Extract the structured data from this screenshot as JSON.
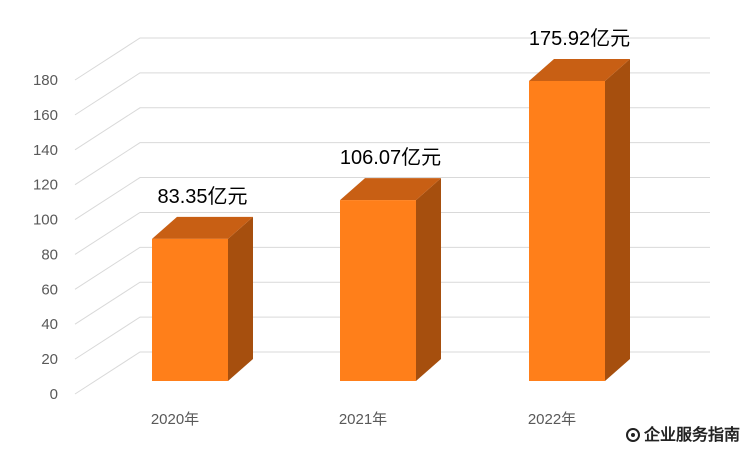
{
  "chart_data": {
    "type": "bar",
    "style": "3d-column",
    "categories": [
      "2020年",
      "2021年",
      "2022年"
    ],
    "values": [
      83.35,
      106.07,
      175.92
    ],
    "data_labels": [
      "83.35亿元",
      "106.07亿元",
      "175.92亿元"
    ],
    "title": "",
    "xlabel": "",
    "ylabel": "",
    "ylim": [
      0,
      180
    ],
    "yticks": [
      0,
      20,
      40,
      60,
      80,
      100,
      120,
      140,
      160,
      180
    ],
    "grid": true,
    "legend": "none",
    "colors": {
      "bar_front": "#ff7f1a",
      "bar_side": "#a64f0e",
      "bar_top": "#c85f14",
      "grid": "#d9d9d9"
    }
  },
  "watermark": {
    "text": "企业服务指南",
    "icon": "chat-bubble-icon"
  }
}
